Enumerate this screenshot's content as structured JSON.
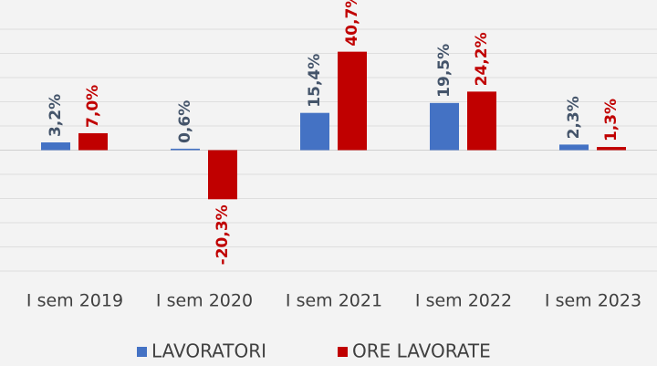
{
  "chart_data": {
    "type": "bar",
    "categories": [
      "I sem 2019",
      "I sem 2020",
      "I sem 2021",
      "I sem 2022",
      "I sem 2023"
    ],
    "series": [
      {
        "name": "LAVORATORI",
        "color": "#4472c4",
        "label_color": "#44546a",
        "values": [
          3.2,
          0.6,
          15.4,
          19.5,
          2.3
        ],
        "value_labels": [
          "3,2%",
          "0,6%",
          "15,4%",
          "19,5%",
          "2,3%"
        ]
      },
      {
        "name": "ORE LAVORATE",
        "color": "#c00000",
        "label_color": "#c00000",
        "values": [
          7.0,
          -20.3,
          40.7,
          24.2,
          1.3
        ],
        "value_labels": [
          "7,0%",
          "-20,3%",
          "40,7%",
          "24,2%",
          "1,3%"
        ]
      }
    ],
    "ylim": [
      -50,
      50
    ],
    "yticks": [
      -50,
      -40,
      -30,
      -20,
      -10,
      0,
      10,
      20,
      30,
      40,
      50
    ],
    "grid": true,
    "legend": "bottom"
  }
}
